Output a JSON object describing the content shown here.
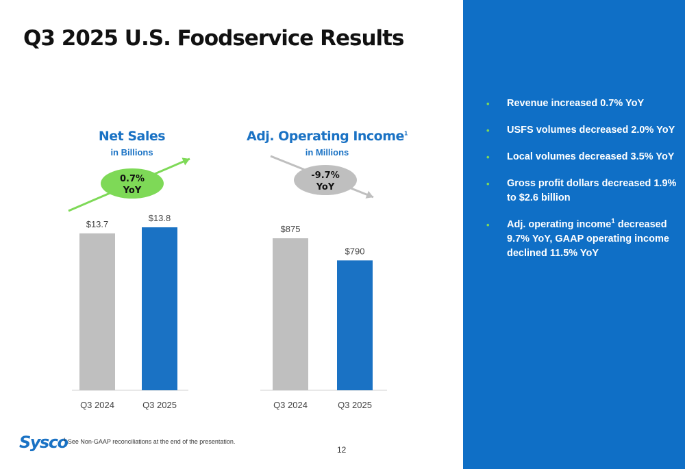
{
  "slide": {
    "title": "Q3 2025 U.S. Foodservice Results",
    "page_number": "12",
    "footnote_marker": "1",
    "footnote_text": "See Non-GAAP reconciliations at the end of the presentation.",
    "logo_text": "Sysco"
  },
  "colors": {
    "brand_blue": "#0f6fc6",
    "bar_current": "#1a72c4",
    "bar_prior": "#bfbfbf",
    "growth_green": "#7ed957",
    "decline_gray": "#bfbfbf"
  },
  "bullets": [
    {
      "text": "Revenue increased 0.7% YoY"
    },
    {
      "text": "USFS volumes decreased 2.0% YoY"
    },
    {
      "text": "Local volumes decreased 3.5% YoY"
    },
    {
      "text": "Gross profit dollars decreased 1.9% to $2.6 billion"
    },
    {
      "text_before": "Adj. operating income",
      "sup": "1",
      "text_after": " decreased 9.7% YoY, GAAP operating income declined 11.5% YoY"
    }
  ],
  "chart_data": [
    {
      "type": "bar",
      "title": "Net Sales",
      "subtitle": "in Billions",
      "categories": [
        "Q3 2024",
        "Q3 2025"
      ],
      "values": [
        13.7,
        13.8
      ],
      "value_labels": [
        "$13.7",
        "$13.8"
      ],
      "bar_colors": [
        "#bfbfbf",
        "#1a72c4"
      ],
      "change_badge": {
        "line1": "0.7%",
        "line2": "YoY",
        "direction": "up",
        "color": "#7ed957"
      }
    },
    {
      "type": "bar",
      "title": "Adj. Operating Income",
      "title_sup": "1",
      "subtitle": "in Millions",
      "categories": [
        "Q3 2024",
        "Q3 2025"
      ],
      "values": [
        875,
        790
      ],
      "value_labels": [
        "$875",
        "$790"
      ],
      "bar_colors": [
        "#bfbfbf",
        "#1a72c4"
      ],
      "change_badge": {
        "line1": "-9.7%",
        "line2": "YoY",
        "direction": "down",
        "color": "#bfbfbf"
      }
    }
  ]
}
